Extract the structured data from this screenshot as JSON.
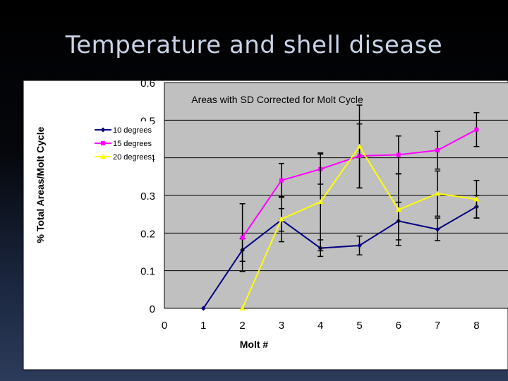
{
  "slide": {
    "title": "Temperature and shell disease"
  },
  "chart_data": {
    "type": "line",
    "title": "Areas with SD Corrected for Molt Cycle",
    "xlabel": "Molt #",
    "ylabel": "% Total Areas/Molt Cycle",
    "xlim": [
      0,
      8
    ],
    "ylim": [
      0,
      0.6
    ],
    "x_ticks": [
      "0",
      "1",
      "2",
      "3",
      "4",
      "5",
      "6",
      "7",
      "8"
    ],
    "y_ticks": [
      "0",
      "0.1",
      "0.2",
      "0.3",
      "0.4",
      "0.5",
      "0.6"
    ],
    "grid": "horizontal",
    "legend_position": "top-left",
    "series": [
      {
        "name": "10 degrees",
        "color": "#000080",
        "marker": "diamond",
        "x": [
          1,
          2,
          3,
          4,
          5,
          6,
          7,
          8
        ],
        "values": [
          0,
          0.155,
          0.235,
          0.16,
          0.167,
          0.232,
          0.21,
          0.27
        ],
        "error": [
          null,
          0.03,
          0.03,
          0.022,
          0.025,
          0.05,
          0.03,
          0.03
        ]
      },
      {
        "name": "15 degrees",
        "color": "#ff00ff",
        "marker": "square",
        "x": [
          2,
          3,
          4,
          5,
          6,
          7,
          8
        ],
        "values": [
          0.188,
          0.34,
          0.37,
          0.405,
          0.408,
          0.42,
          0.475
        ],
        "error": [
          0.09,
          0.045,
          0.04,
          0.085,
          0.05,
          0.05,
          0.045
        ]
      },
      {
        "name": "20 degrees",
        "color": "#ffff00",
        "marker": "triangle",
        "x": [
          2,
          3,
          4,
          5,
          6,
          7,
          8
        ],
        "values": [
          0,
          0.237,
          0.283,
          0.43,
          0.262,
          0.305,
          0.29
        ],
        "error": [
          null,
          0.06,
          0.13,
          0.11,
          0.095,
          0.06,
          0.05
        ]
      }
    ]
  }
}
